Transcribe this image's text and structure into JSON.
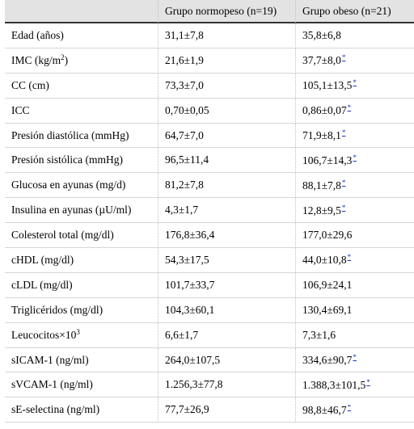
{
  "table": {
    "headers": [
      "",
      "Grupo normopeso (n=19)",
      "Grupo obeso (n=21)"
    ],
    "rows": [
      {
        "label": "Edad (años)",
        "normo": "31,1±7,8",
        "obeso": "35,8±6,8",
        "sig": false
      },
      {
        "label": "IMC (kg/m",
        "sup": "2",
        "label_after": ")",
        "normo": "21,6±1,9",
        "obeso": "37,7±8,0",
        "sig": true
      },
      {
        "label": "CC (cm)",
        "normo": "73,3±7,0",
        "obeso": "105,1±13,5",
        "sig": true
      },
      {
        "label": "ICC",
        "normo": "0,70±0,05",
        "obeso": "0,86±0,07",
        "sig": true
      },
      {
        "label": "Presión diastólica (mmHg)",
        "normo": "64,7±7,0",
        "obeso": "71,9±8,1",
        "sig": true
      },
      {
        "label": "Presión sistólica (mmHg)",
        "normo": "96,5±11,4",
        "obeso": "106,7±14,3",
        "sig": true
      },
      {
        "label": "Glucosa en ayunas (mg/d)",
        "normo": "81,2±7,8",
        "obeso": "88,1±7,8",
        "sig": true
      },
      {
        "label": "Insulina en ayunas (µU/ml)",
        "normo": "4,3±1,7",
        "obeso": "12,8±9,5",
        "sig": true
      },
      {
        "label": "Colesterol total (mg/dl)",
        "normo": "176,8±36,4",
        "obeso": "177,0±29,6",
        "sig": false
      },
      {
        "label": "cHDL (mg/dl)",
        "normo": "54,3±17,5",
        "obeso": "44,0±10,8",
        "sig": true
      },
      {
        "label": "cLDL (mg/dl)",
        "normo": "101,7±33,7",
        "obeso": "106,9±24,1",
        "sig": false
      },
      {
        "label": "Triglicéridos (mg/dl)",
        "normo": "104,3±60,1",
        "obeso": "130,4±69,1",
        "sig": false
      },
      {
        "label": "Leucocitos×10",
        "sup": "3",
        "label_after": "",
        "normo": "6,6±1,7",
        "obeso": "7,3±1,6",
        "sig": false
      },
      {
        "label": "sICAM-1 (ng/ml)",
        "normo": "264,0±107,5",
        "obeso": "334,6±90,7",
        "sig": true
      },
      {
        "label": "sVCAM-1 (ng/ml)",
        "normo": "1.256,3±77,8",
        "obeso": "1.388,3±101,5",
        "sig": true
      },
      {
        "label": "sE-selectina (ng/ml)",
        "normo": "77,7±26,9",
        "obeso": "98,8±46,7",
        "sig": true
      }
    ],
    "sig_mark": "*"
  }
}
